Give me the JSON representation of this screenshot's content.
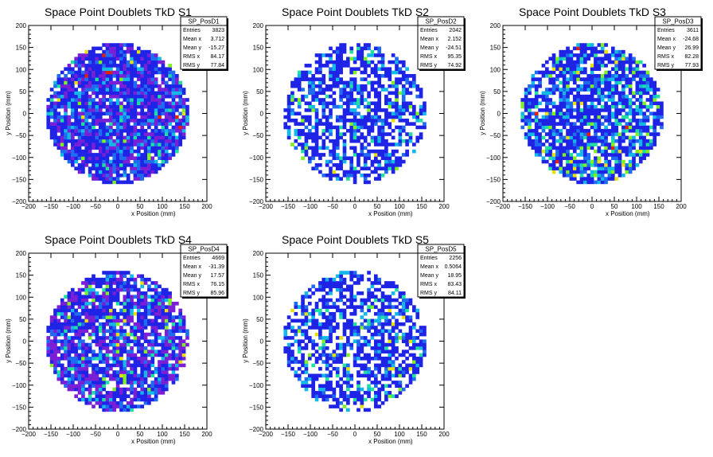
{
  "chart_data": [
    {
      "type": "heatmap",
      "title": "Space Point Doublets TkD S1",
      "xlabel": "x Position (mm)",
      "ylabel": "y Position (mm)",
      "xlim": [
        -200,
        200
      ],
      "ylim": [
        -200,
        200
      ],
      "xticks": [
        "−200",
        "−150",
        "−100",
        "−50",
        "0",
        "50",
        "100",
        "150",
        "200"
      ],
      "yticks": [
        "−200",
        "−150",
        "−100",
        "−50",
        "0",
        "50",
        "100",
        "150",
        "200"
      ],
      "bin_width_mm": 7.8,
      "active_radius_mm": 160,
      "stats": {
        "name": "SP_PosD1",
        "rows": [
          {
            "label": "Entries",
            "value": "3823"
          },
          {
            "label": "Mean x",
            "value": "3.712"
          },
          {
            "label": "Mean y",
            "value": "-15.27"
          },
          {
            "label": "RMS x",
            "value": "84.17"
          },
          {
            "label": "RMS y",
            "value": "77.84"
          }
        ]
      },
      "occupancy": 0.9,
      "palette": [
        "#7b1fd6",
        "#1f23e6",
        "#1f6cf0",
        "#13b8e8",
        "#20e0a0",
        "#7ff020",
        "#e8e010",
        "#e02010"
      ],
      "palette_weights": [
        0.22,
        0.5,
        0.14,
        0.08,
        0.03,
        0.015,
        0.01,
        0.005
      ]
    },
    {
      "type": "heatmap",
      "title": "Space Point Doublets TkD S2",
      "xlabel": "x Position (mm)",
      "ylabel": "y Position (mm)",
      "xlim": [
        -200,
        200
      ],
      "ylim": [
        -200,
        200
      ],
      "xticks": [
        "−200",
        "−150",
        "−100",
        "−50",
        "0",
        "50",
        "100",
        "150",
        "200"
      ],
      "yticks": [
        "−200",
        "−150",
        "−100",
        "−50",
        "0",
        "50",
        "100",
        "150",
        "200"
      ],
      "bin_width_mm": 7.8,
      "active_radius_mm": 160,
      "stats": {
        "name": "SP_PosD2",
        "rows": [
          {
            "label": "Entries",
            "value": "2042"
          },
          {
            "label": "Mean x",
            "value": "2.152"
          },
          {
            "label": "Mean y",
            "value": "-24.51"
          },
          {
            "label": "RMS x",
            "value": "95.35"
          },
          {
            "label": "RMS y",
            "value": "74.92"
          }
        ]
      },
      "occupancy": 0.6,
      "palette": [
        "#1f23e6",
        "#1f6cf0",
        "#13b8e8",
        "#20e0a0",
        "#7ff020",
        "#e8e010"
      ],
      "palette_weights": [
        0.72,
        0.1,
        0.1,
        0.04,
        0.025,
        0.015
      ]
    },
    {
      "type": "heatmap",
      "title": "Space Point Doublets TkD S3",
      "xlabel": "x Position (mm)",
      "ylabel": "y Position (mm)",
      "xlim": [
        -200,
        200
      ],
      "ylim": [
        -200,
        200
      ],
      "xticks": [
        "−200",
        "−150",
        "−100",
        "−50",
        "0",
        "50",
        "100",
        "150",
        "200"
      ],
      "yticks": [
        "−200",
        "−150",
        "−100",
        "−50",
        "0",
        "50",
        "100",
        "150",
        "200"
      ],
      "bin_width_mm": 7.8,
      "active_radius_mm": 160,
      "stats": {
        "name": "SP_PosD3",
        "rows": [
          {
            "label": "Entries",
            "value": "3611"
          },
          {
            "label": "Mean x",
            "value": "-24.68"
          },
          {
            "label": "Mean y",
            "value": "26.99"
          },
          {
            "label": "RMS x",
            "value": "82.28"
          },
          {
            "label": "RMS y",
            "value": "77.93"
          }
        ]
      },
      "occupancy": 0.78,
      "palette": [
        "#1f23e6",
        "#1f6cf0",
        "#13b8e8",
        "#20e0a0",
        "#7ff020",
        "#e8e010",
        "#e02010"
      ],
      "palette_weights": [
        0.58,
        0.14,
        0.14,
        0.07,
        0.04,
        0.02,
        0.01
      ]
    },
    {
      "type": "heatmap",
      "title": "Space Point Doublets TkD S4",
      "xlabel": "x Position (mm)",
      "ylabel": "y Position (mm)",
      "xlim": [
        -200,
        200
      ],
      "ylim": [
        -200,
        200
      ],
      "xticks": [
        "−200",
        "−150",
        "−100",
        "−50",
        "0",
        "50",
        "100",
        "150",
        "200"
      ],
      "yticks": [
        "−200",
        "−150",
        "−100",
        "−50",
        "0",
        "50",
        "100",
        "150",
        "200"
      ],
      "bin_width_mm": 7.8,
      "active_radius_mm": 160,
      "stats": {
        "name": "SP_PosD4",
        "rows": [
          {
            "label": "Entries",
            "value": "4669"
          },
          {
            "label": "Mean x",
            "value": "-31.39"
          },
          {
            "label": "Mean y",
            "value": "17.57"
          },
          {
            "label": "RMS x",
            "value": "76.15"
          },
          {
            "label": "RMS y",
            "value": "85.96"
          }
        ]
      },
      "occupancy": 0.82,
      "palette": [
        "#7b1fd6",
        "#1f23e6",
        "#1f6cf0",
        "#13b8e8",
        "#20e0a0",
        "#7ff020",
        "#e8e010"
      ],
      "palette_weights": [
        0.3,
        0.45,
        0.12,
        0.07,
        0.03,
        0.02,
        0.01
      ]
    },
    {
      "type": "heatmap",
      "title": "Space Point Doublets TkD S5",
      "xlabel": "x Position (mm)",
      "ylabel": "y Position (mm)",
      "xlim": [
        -200,
        200
      ],
      "ylim": [
        -200,
        200
      ],
      "xticks": [
        "−200",
        "−150",
        "−100",
        "−50",
        "0",
        "50",
        "100",
        "150",
        "200"
      ],
      "yticks": [
        "−200",
        "−150",
        "−100",
        "−50",
        "0",
        "50",
        "100",
        "150",
        "200"
      ],
      "bin_width_mm": 7.8,
      "active_radius_mm": 160,
      "stats": {
        "name": "SP_PosD5",
        "rows": [
          {
            "label": "Entries",
            "value": "2256"
          },
          {
            "label": "Mean x",
            "value": "0.5064"
          },
          {
            "label": "Mean y",
            "value": "18.95"
          },
          {
            "label": "RMS x",
            "value": "83.43"
          },
          {
            "label": "RMS y",
            "value": "84.11"
          }
        ]
      },
      "occupancy": 0.62,
      "palette": [
        "#1f23e6",
        "#1f6cf0",
        "#13b8e8",
        "#20e0a0",
        "#7ff020",
        "#e8e010"
      ],
      "palette_weights": [
        0.7,
        0.12,
        0.1,
        0.04,
        0.025,
        0.015
      ]
    }
  ]
}
